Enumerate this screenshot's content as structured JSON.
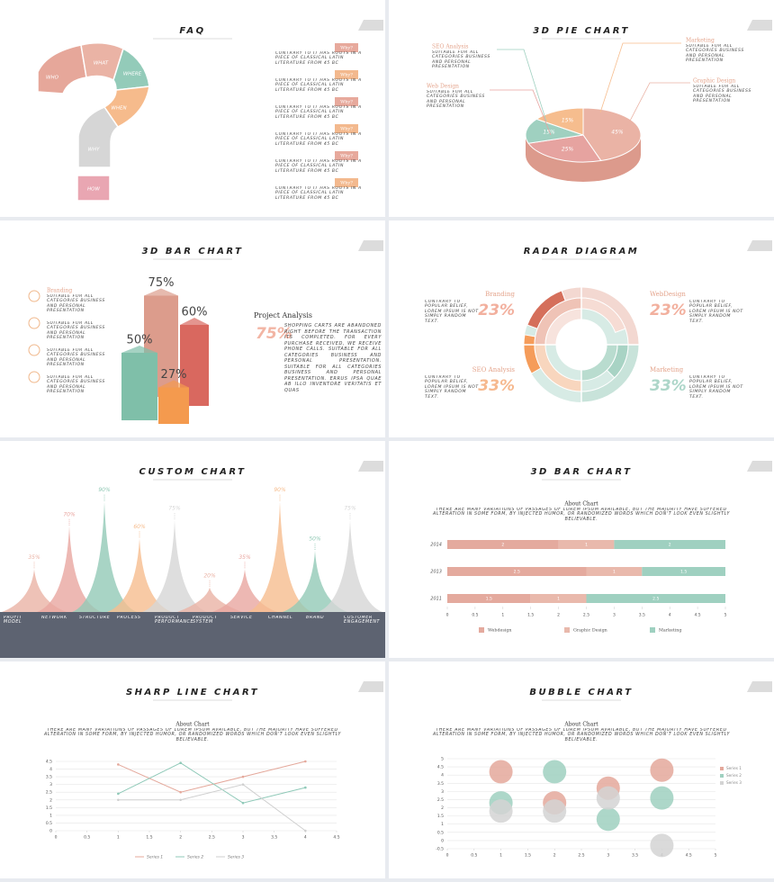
{
  "slides": [
    {
      "title": "FAQ",
      "pieces": [
        "WHO",
        "WHAT",
        "WHERE",
        "WHEN",
        "WHY",
        "HOW"
      ],
      "items": [
        {
          "tag": "Why?",
          "text": "CONTRARY TO IT HAS ROOTS IN A PIECE OF CLASSICAL LATIN LITERATURE FROM 45 BC"
        },
        {
          "tag": "Why?",
          "text": "CONTRARY TO IT HAS ROOTS IN A PIECE OF CLASSICAL LATIN LITERATURE FROM 45 BC"
        },
        {
          "tag": "Why?",
          "text": "CONTRARY TO IT HAS ROOTS IN A PIECE OF CLASSICAL LATIN LITERATURE FROM 45 BC"
        },
        {
          "tag": "Why?",
          "text": "CONTRARY TO IT HAS ROOTS IN A PIECE OF CLASSICAL LATIN LITERATURE FROM 45 BC"
        },
        {
          "tag": "Why?",
          "text": "CONTRARY TO IT HAS ROOTS IN A PIECE OF CLASSICAL LATIN LITERATURE FROM 45 BC"
        },
        {
          "tag": "Why?",
          "text": "CONTRARY TO IT HAS ROOTS IN A PIECE OF CLASSICAL LATIN LITERATURE FROM 45 BC"
        }
      ]
    },
    {
      "title": "3D PIE CHART",
      "chart": {
        "type": "pie",
        "values": [
          45,
          25,
          15,
          15
        ],
        "value_labels": [
          "45%",
          "25%",
          "15%",
          "15%"
        ],
        "colors": [
          "#eab3a5",
          "#e6a3a0",
          "#9fd0c0",
          "#f6bd8e"
        ]
      },
      "labels": [
        {
          "name": "SEO Analysis",
          "text": "SUITABLE FOR ALL CATEGORIES BUSINESS AND PERSONAL PRESENTATION"
        },
        {
          "name": "Web Design",
          "text": "SUITABLE FOR ALL CATEGORIES BUSINESS AND PERSONAL PRESENTATION"
        },
        {
          "name": "Marketing",
          "text": "SUITABLE FOR ALL CATEGORIES BUSINESS AND PERSONAL PRESENTATION"
        },
        {
          "name": "Graphic Design",
          "text": "SUITABLE FOR ALL CATEGORIES BUSINESS AND PERSONAL PRESENTATION"
        }
      ]
    },
    {
      "title": "3D BAR CHART",
      "chart": {
        "type": "bar3d",
        "values": [
          75,
          60,
          50,
          27
        ],
        "value_labels": [
          "75%",
          "60%",
          "50%",
          "27%"
        ],
        "colors": [
          "#dc9c8c",
          "#d9685f",
          "#7fbfa9",
          "#f49a4e"
        ]
      },
      "list": [
        {
          "name": "Branding",
          "text": "SUITABLE FOR ALL CATEGORIES BUSINESS AND PERSONAL PRESENTATION"
        },
        {
          "text": "SUITABLE FOR ALL CATEGORIES BUSINESS AND PERSONAL PRESENTATION"
        },
        {
          "text": "SUITABLE FOR ALL CATEGORIES BUSINESS AND PERSONAL PRESENTATION"
        },
        {
          "text": "SUITABLE FOR ALL CATEGORIES BUSINESS AND PERSONAL PRESENTATION"
        }
      ],
      "analysis": {
        "title": "Project Analysis",
        "figure": "75%",
        "text": "SHOPPING CARTS ARE ABANDONED RIGHT BEFORE THE TRANSACTION ITS COMPLETED. FOR EVERY PURCHASE RECEIVED, WE RECEIVE PHONE CALLS. SUITABLE FOR ALL CATEGORIES BUSINESS AND PERSONAL PRESENTATION. SUITABLE FOR ALL CATEGORIES BUSINESS AND PERSONAL PRESENTATION. ERRUS IPSA QUAE AB ILLO INVENTORE VERITATIS ET QUAS"
      }
    },
    {
      "title": "RADAR DIAGRAM",
      "items": [
        {
          "name": "Branding",
          "figure": "23%",
          "text": "CONTRARY TO POPULAR BELIEF, LOREM IPSUM IS NOT SIMPLY RANDOM TEXT."
        },
        {
          "name": "WebDesign",
          "figure": "23%",
          "text": "CONTRARY TO POPULAR BELIEF, LOREM IPSUM IS NOT SIMPLY RANDOM TEXT."
        },
        {
          "name": "SEO Analysis",
          "figure": "33%",
          "text": "CONTRARY TO POPULAR BELIEF, LOREM IPSUM IS NOT SIMPLY RANDOM TEXT."
        },
        {
          "name": "Marketing",
          "figure": "33%",
          "text": "CONTRARY TO POPULAR BELIEF, LOREM IPSUM IS NOT SIMPLY RANDOM TEXT."
        }
      ]
    },
    {
      "title": "CUSTOM CHART",
      "chart": {
        "type": "peaks",
        "values": [
          35,
          70,
          90,
          60,
          75,
          20,
          35,
          90,
          50,
          75
        ],
        "value_labels": [
          "35%",
          "70%",
          "90%",
          "60%",
          "75%",
          "20%",
          "35%",
          "90%",
          "50%",
          "75%"
        ],
        "colors": [
          "#eab3a5",
          "#e9a6a0",
          "#92c9b6",
          "#f6bd8e",
          "#d6d6d6",
          "#eab3a5",
          "#e9a6a0",
          "#f6bd8e",
          "#92c9b6",
          "#d6d6d6"
        ],
        "categories": [
          "PROFIT MODEL",
          "NETWORK",
          "STRUCTURE",
          "PROCESS",
          "PRODUCT PERFORMANCE",
          "PRODUCT SYSTEM",
          "SERVICE",
          "CHANNEL",
          "BRAND",
          "CUSTOMER ENGAGEMENT"
        ]
      }
    },
    {
      "title": "3D BAR CHART",
      "chart": {
        "type": "stackedbarh",
        "title": "About Chart",
        "subtitle": "THERE ARE MANY VARIATIONS OF PASSAGES OF LOREM IPSUM AVAILABLE, BUT THE MAJORITY HAVE SUFFERED ALTERATION IN SOME FORM, BY INJECTED HUMOR, OR RANDOMIZED WORDS WHICH DON'T LOOK EVEN SLIGHTLY BELIEVABLE.",
        "categories": [
          "2014",
          "2013",
          "2011"
        ],
        "series": [
          {
            "name": "Webdesign",
            "color": "#e4aa9e",
            "values": [
              2,
              2.5,
              1.5
            ]
          },
          {
            "name": "Graphic Design",
            "color": "#e9b9ac",
            "values": [
              1,
              1,
              1
            ]
          },
          {
            "name": "Marketing",
            "color": "#9fd0c0",
            "values": [
              2,
              1.5,
              2.5
            ]
          }
        ],
        "xlim": [
          0,
          5
        ],
        "xticks": [
          0,
          0.5,
          1,
          1.5,
          2,
          2.5,
          3,
          3.5,
          4,
          4.5,
          5
        ]
      }
    },
    {
      "title": "SHARP LINE CHART",
      "chart": {
        "type": "line",
        "title": "About Chart",
        "subtitle": "THERE ARE MANY VARIATIONS OF PASSAGES OF LOREM IPSUM AVAILABLE, BUT THE MAJORITY HAVE SUFFERED ALTERATION IN SOME FORM, BY INJECTED HUMOR, OR RANDOMIZED WORDS WHICH DON'T LOOK EVEN SLIGHTLY BELIEVABLE.",
        "x": [
          1,
          2,
          3,
          4
        ],
        "series": [
          {
            "name": "Series 1",
            "color": "#e4a89b",
            "values": [
              4.3,
              2.5,
              3.5,
              4.5
            ]
          },
          {
            "name": "Series 2",
            "color": "#8fc9b8",
            "values": [
              2.4,
              4.4,
              1.8,
              2.8
            ]
          },
          {
            "name": "Series 3",
            "color": "#cfcfcf",
            "values": [
              2,
              2,
              3,
              0
            ]
          }
        ],
        "xlim": [
          0,
          4.5
        ],
        "xticks": [
          0,
          0.5,
          1,
          1.5,
          2,
          2.5,
          3,
          3.5,
          4,
          4.5
        ],
        "ylim": [
          0,
          4.5
        ],
        "yticks": [
          0,
          0.5,
          1,
          1.5,
          2,
          2.5,
          3,
          3.5,
          4,
          4.5
        ],
        "grid": true
      }
    },
    {
      "title": "BUBBLE CHART",
      "chart": {
        "type": "bubble",
        "title": "About Chart",
        "subtitle": "THERE ARE MANY VARIATIONS OF PASSAGES OF LOREM IPSUM AVAILABLE, BUT THE MAJORITY HAVE SUFFERED ALTERATION IN SOME FORM, BY INJECTED HUMOR, OR RANDOMIZED WORDS WHICH DON'T LOOK EVEN SLIGHTLY BELIEVABLE.",
        "series": [
          {
            "name": "Series 1",
            "color": "#e4a89b",
            "x": [
              1,
              2,
              3,
              4
            ],
            "values": [
              4.2,
              2.3,
              3.2,
              4.3
            ]
          },
          {
            "name": "Series 2",
            "color": "#9fd0c0",
            "x": [
              1,
              2,
              3,
              4
            ],
            "values": [
              2.3,
              4.2,
              1.3,
              2.6
            ]
          },
          {
            "name": "Series 3",
            "color": "#d4d4d4",
            "x": [
              1,
              2,
              3,
              4
            ],
            "values": [
              1.8,
              1.8,
              2.6,
              -0.3
            ]
          }
        ],
        "xlim": [
          0,
          5
        ],
        "xticks": [
          0,
          0.5,
          1,
          1.5,
          2,
          2.5,
          3,
          3.5,
          4,
          4.5,
          5
        ],
        "ylim": [
          -0.5,
          5
        ],
        "yticks": [
          -0.5,
          0,
          0.5,
          1,
          1.5,
          2,
          2.5,
          3,
          3.5,
          4,
          4.5,
          5
        ],
        "grid": true
      }
    }
  ]
}
